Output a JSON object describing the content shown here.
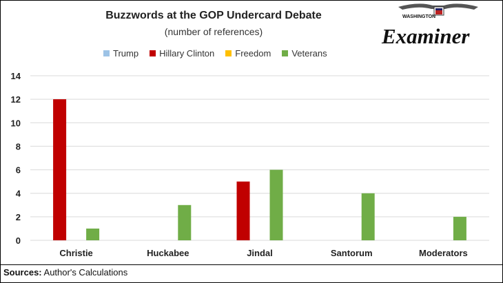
{
  "chart_data": {
    "type": "bar",
    "title": "Buzzwords at the GOP Undercard Debate",
    "subtitle": "(number of references)",
    "categories": [
      "Christie",
      "Huckabee",
      "Jindal",
      "Santorum",
      "Moderators"
    ],
    "series": [
      {
        "name": "Trump",
        "color": "#9DC3E6",
        "values": [
          0,
          0,
          0,
          0,
          0
        ]
      },
      {
        "name": "Hillary Clinton",
        "color": "#C00000",
        "values": [
          12,
          0,
          5,
          0,
          0
        ]
      },
      {
        "name": "Freedom",
        "color": "#FFC000",
        "values": [
          0,
          0,
          0,
          0,
          0
        ]
      },
      {
        "name": "Veterans",
        "color": "#70AD47",
        "values": [
          1,
          3,
          6,
          4,
          2
        ]
      }
    ],
    "ylim": [
      0,
      14
    ],
    "yticks": [
      "0",
      "2",
      "4",
      "6",
      "8",
      "10",
      "12",
      "14"
    ],
    "grid": true,
    "legend_position": "top"
  },
  "logo": {
    "small_text": "WASHINGTON",
    "text": "Examiner"
  },
  "footer": {
    "label": "Sources:",
    "text": " Author's Calculations"
  }
}
